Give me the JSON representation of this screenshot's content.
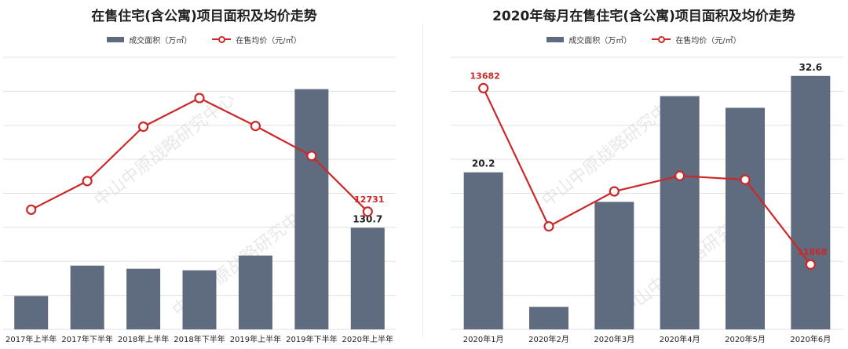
{
  "watermark": "中山中原战略研究中心",
  "colors": {
    "bar": "#5f6b7f",
    "line": "#cc2828",
    "grid": "#e1e1e1",
    "title": "#1f1f1f"
  },
  "chart_data": [
    {
      "type": "bar",
      "title": "在售住宅(含公寓)项目面积及均价走势",
      "legend": {
        "placement": "top",
        "entries": [
          "成交面积（万㎡）",
          "在售均价（元/㎡）"
        ]
      },
      "categories": [
        "2017年上半年",
        "2017年下半年",
        "2018年上半年",
        "2018年下半年",
        "2019年上半年",
        "2019年下半年",
        "2020年上半年"
      ],
      "series": [
        {
          "name": "成交面积（万㎡）",
          "type": "bar",
          "axis": "left",
          "values": [
            43,
            82,
            78,
            76,
            95,
            309,
            130.7
          ],
          "labels": [
            "",
            "",
            "",
            "",
            "",
            "",
            "130.7"
          ]
        },
        {
          "name": "在售均价（元/㎡）",
          "type": "line",
          "axis": "right",
          "values": [
            12760,
            13180,
            13980,
            14400,
            13990,
            13550,
            12731
          ],
          "labels": [
            "",
            "",
            "",
            "",
            "",
            "",
            "12731"
          ]
        }
      ],
      "ylim_left": [
        0,
        350
      ],
      "ylim_right": [
        11000,
        15000
      ],
      "grid": true
    },
    {
      "type": "bar",
      "title": "2020年每月在售住宅(含公寓)项目面积及均价走势",
      "legend": {
        "placement": "top",
        "entries": [
          "成交面积（万㎡）",
          "在售均价（元/㎡）"
        ]
      },
      "categories": [
        "2020年1月",
        "2020年2月",
        "2020年3月",
        "2020年4月",
        "2020年5月",
        "2020年6月"
      ],
      "series": [
        {
          "name": "成交面积（万㎡）",
          "type": "bar",
          "axis": "left",
          "values": [
            20.2,
            2.9,
            16.4,
            30.0,
            28.5,
            32.6
          ],
          "labels": [
            "20.2",
            "",
            "",
            "",
            "",
            "32.6"
          ]
        },
        {
          "name": "在售均价（元/㎡）",
          "type": "line",
          "axis": "right",
          "values": [
            13682,
            12260,
            12620,
            12780,
            12740,
            11868
          ],
          "labels": [
            "13682",
            "",
            "",
            "",
            "",
            "11868"
          ]
        }
      ],
      "ylim_left": [
        0,
        35
      ],
      "ylim_right": [
        11200,
        14000
      ],
      "grid": true
    }
  ]
}
